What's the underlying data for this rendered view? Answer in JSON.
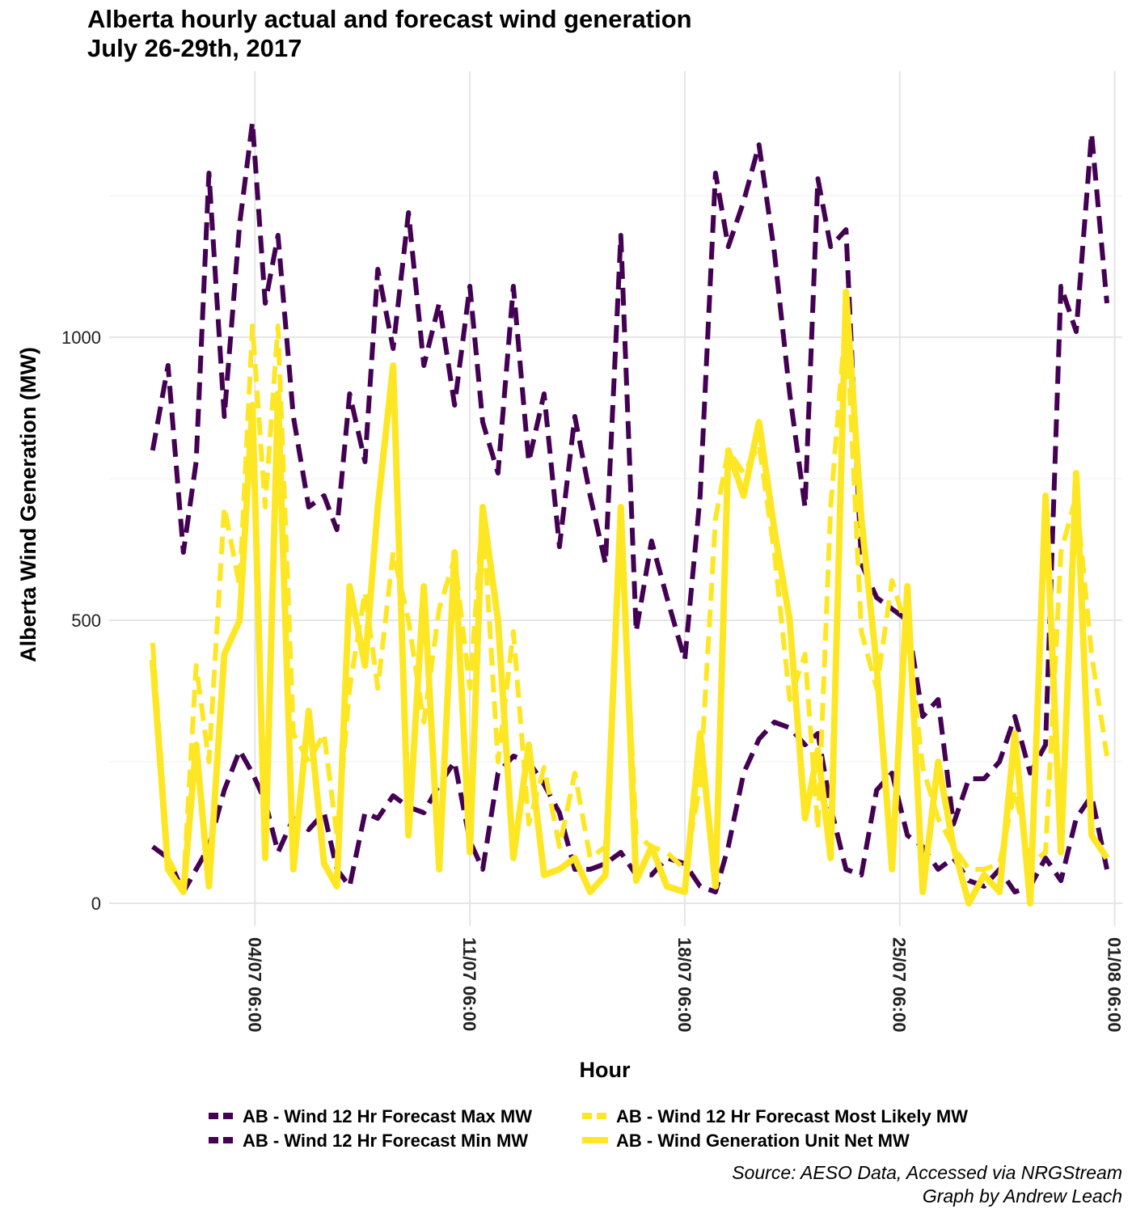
{
  "chart_data": {
    "type": "line",
    "title": [
      "Alberta hourly actual and forecast wind generation",
      "July 26-29th, 2017"
    ],
    "xlabel": "Hour",
    "ylabel": "Alberta Wind Generation (MW)",
    "ylim": [
      -40,
      1470
    ],
    "xlim": [
      "2017-06-29T12:00",
      "2017-08-01T12:00"
    ],
    "y_ticks": [
      0,
      500,
      1000
    ],
    "x_ticks": [
      {
        "label": "04/07 06:00",
        "t": "2017-07-04T06:00"
      },
      {
        "label": "11/07 06:00",
        "t": "2017-07-11T06:00"
      },
      {
        "label": "18/07 06:00",
        "t": "2017-07-18T06:00"
      },
      {
        "label": "25/07 06:00",
        "t": "2017-07-25T06:00"
      },
      {
        "label": "01/08 06:00",
        "t": "2017-08-01T06:00"
      }
    ],
    "grid": true,
    "legend_position": "bottom",
    "colors": {
      "max": "#440154",
      "min": "#440154",
      "likely": "#fde725",
      "actual": "#fde725"
    },
    "series": [
      {
        "name": "AB - Wind 12 Hr Forecast Max MW",
        "style": "dashed",
        "x": [
          "2017-06-30T22:00",
          "2017-07-01T10:00",
          "2017-07-01T22:00",
          "2017-07-02T08:00",
          "2017-07-02T18:00",
          "2017-07-03T06:00",
          "2017-07-03T18:00",
          "2017-07-04T04:00",
          "2017-07-04T14:00",
          "2017-07-05T00:00",
          "2017-07-05T12:00",
          "2017-07-06T00:00",
          "2017-07-06T12:00",
          "2017-07-06T22:00",
          "2017-07-07T08:00",
          "2017-07-07T20:00",
          "2017-07-08T06:00",
          "2017-07-08T18:00",
          "2017-07-09T06:00",
          "2017-07-09T18:00",
          "2017-07-10T06:00",
          "2017-07-10T18:00",
          "2017-07-11T06:00",
          "2017-07-11T16:00",
          "2017-07-12T04:00",
          "2017-07-12T16:00",
          "2017-07-13T04:00",
          "2017-07-13T16:00",
          "2017-07-14T04:00",
          "2017-07-14T16:00",
          "2017-07-15T04:00",
          "2017-07-15T16:00",
          "2017-07-16T04:00",
          "2017-07-16T16:00",
          "2017-07-17T04:00",
          "2017-07-17T16:00",
          "2017-07-18T06:00",
          "2017-07-18T18:00",
          "2017-07-19T06:00",
          "2017-07-19T16:00",
          "2017-07-20T04:00",
          "2017-07-20T16:00",
          "2017-07-21T04:00",
          "2017-07-21T16:00",
          "2017-07-22T04:00",
          "2017-07-22T14:00",
          "2017-07-23T00:00",
          "2017-07-23T12:00",
          "2017-07-24T00:00",
          "2017-07-24T12:00",
          "2017-07-25T00:00",
          "2017-07-25T12:00",
          "2017-07-26T00:00",
          "2017-07-26T12:00",
          "2017-07-27T00:00",
          "2017-07-27T12:00",
          "2017-07-28T00:00",
          "2017-07-28T12:00",
          "2017-07-29T00:00",
          "2017-07-29T12:00",
          "2017-07-30T00:00",
          "2017-07-30T12:00",
          "2017-07-31T00:00",
          "2017-07-31T12:00",
          "2017-08-01T00:00"
        ],
        "y": [
          800,
          950,
          620,
          780,
          1290,
          860,
          1200,
          1380,
          1060,
          1180,
          860,
          700,
          720,
          660,
          900,
          780,
          1120,
          980,
          1220,
          950,
          1060,
          880,
          1090,
          850,
          760,
          1090,
          780,
          900,
          630,
          860,
          720,
          600,
          1180,
          480,
          640,
          540,
          430,
          720,
          1290,
          1160,
          1240,
          1340,
          1150,
          900,
          700,
          1280,
          1160,
          1190,
          600,
          540,
          520,
          500,
          330,
          360,
          140,
          220,
          220,
          250,
          330,
          230,
          280,
          1090,
          1010,
          1360,
          1060
        ]
      },
      {
        "name": "AB - Wind 12 Hr Forecast Min MW",
        "style": "dashed",
        "x": [
          "2017-06-30T22:00",
          "2017-07-01T10:00",
          "2017-07-01T22:00",
          "2017-07-02T08:00",
          "2017-07-02T18:00",
          "2017-07-03T06:00",
          "2017-07-03T18:00",
          "2017-07-04T04:00",
          "2017-07-04T14:00",
          "2017-07-05T00:00",
          "2017-07-05T12:00",
          "2017-07-06T00:00",
          "2017-07-06T12:00",
          "2017-07-06T22:00",
          "2017-07-07T08:00",
          "2017-07-07T20:00",
          "2017-07-08T06:00",
          "2017-07-08T18:00",
          "2017-07-09T06:00",
          "2017-07-09T18:00",
          "2017-07-10T06:00",
          "2017-07-10T18:00",
          "2017-07-11T06:00",
          "2017-07-11T16:00",
          "2017-07-12T04:00",
          "2017-07-12T16:00",
          "2017-07-13T04:00",
          "2017-07-13T16:00",
          "2017-07-14T04:00",
          "2017-07-14T16:00",
          "2017-07-15T04:00",
          "2017-07-15T16:00",
          "2017-07-16T04:00",
          "2017-07-16T16:00",
          "2017-07-17T04:00",
          "2017-07-17T16:00",
          "2017-07-18T06:00",
          "2017-07-18T18:00",
          "2017-07-19T06:00",
          "2017-07-19T16:00",
          "2017-07-20T04:00",
          "2017-07-20T16:00",
          "2017-07-21T04:00",
          "2017-07-21T16:00",
          "2017-07-22T04:00",
          "2017-07-22T14:00",
          "2017-07-23T00:00",
          "2017-07-23T12:00",
          "2017-07-24T00:00",
          "2017-07-24T12:00",
          "2017-07-25T00:00",
          "2017-07-25T12:00",
          "2017-07-26T00:00",
          "2017-07-26T12:00",
          "2017-07-27T00:00",
          "2017-07-27T12:00",
          "2017-07-28T00:00",
          "2017-07-28T12:00",
          "2017-07-29T00:00",
          "2017-07-29T12:00",
          "2017-07-30T00:00",
          "2017-07-30T12:00",
          "2017-07-31T00:00",
          "2017-07-31T12:00",
          "2017-08-01T00:00"
        ],
        "y": [
          100,
          80,
          20,
          60,
          100,
          200,
          270,
          230,
          180,
          90,
          150,
          130,
          160,
          60,
          30,
          160,
          150,
          190,
          170,
          160,
          210,
          250,
          110,
          60,
          230,
          260,
          250,
          210,
          160,
          60,
          60,
          70,
          90,
          50,
          50,
          80,
          70,
          30,
          20,
          100,
          230,
          290,
          320,
          310,
          280,
          300,
          170,
          60,
          50,
          200,
          230,
          120,
          100,
          60,
          80,
          40,
          30,
          60,
          20,
          30,
          80,
          40,
          150,
          190,
          60
        ]
      },
      {
        "name": "AB - Wind 12 Hr Forecast Most Likely MW",
        "style": "dashed",
        "x": [
          "2017-06-30T22:00",
          "2017-07-01T10:00",
          "2017-07-01T22:00",
          "2017-07-02T08:00",
          "2017-07-02T18:00",
          "2017-07-03T06:00",
          "2017-07-03T18:00",
          "2017-07-04T04:00",
          "2017-07-04T14:00",
          "2017-07-05T00:00",
          "2017-07-05T12:00",
          "2017-07-06T00:00",
          "2017-07-06T12:00",
          "2017-07-06T22:00",
          "2017-07-07T08:00",
          "2017-07-07T20:00",
          "2017-07-08T06:00",
          "2017-07-08T18:00",
          "2017-07-09T06:00",
          "2017-07-09T18:00",
          "2017-07-10T06:00",
          "2017-07-10T18:00",
          "2017-07-11T06:00",
          "2017-07-11T16:00",
          "2017-07-12T04:00",
          "2017-07-12T16:00",
          "2017-07-13T04:00",
          "2017-07-13T16:00",
          "2017-07-14T04:00",
          "2017-07-14T16:00",
          "2017-07-15T04:00",
          "2017-07-15T16:00",
          "2017-07-16T04:00",
          "2017-07-16T16:00",
          "2017-07-17T04:00",
          "2017-07-17T16:00",
          "2017-07-18T06:00",
          "2017-07-18T18:00",
          "2017-07-19T06:00",
          "2017-07-19T16:00",
          "2017-07-20T04:00",
          "2017-07-20T16:00",
          "2017-07-21T04:00",
          "2017-07-21T16:00",
          "2017-07-22T04:00",
          "2017-07-22T14:00",
          "2017-07-23T00:00",
          "2017-07-23T12:00",
          "2017-07-24T00:00",
          "2017-07-24T12:00",
          "2017-07-25T00:00",
          "2017-07-25T12:00",
          "2017-07-26T00:00",
          "2017-07-26T12:00",
          "2017-07-27T00:00",
          "2017-07-27T12:00",
          "2017-07-28T00:00",
          "2017-07-28T12:00",
          "2017-07-29T00:00",
          "2017-07-29T12:00",
          "2017-07-30T00:00",
          "2017-07-30T12:00",
          "2017-07-31T00:00",
          "2017-07-31T12:00",
          "2017-08-01T00:00"
        ],
        "y": [
          460,
          80,
          30,
          420,
          250,
          700,
          560,
          1020,
          700,
          1020,
          300,
          250,
          300,
          120,
          380,
          550,
          380,
          620,
          500,
          320,
          520,
          610,
          380,
          690,
          250,
          480,
          140,
          240,
          100,
          230,
          80,
          100,
          680,
          120,
          100,
          90,
          60,
          210,
          680,
          800,
          760,
          810,
          620,
          360,
          440,
          130,
          700,
          1040,
          480,
          380,
          570,
          480,
          240,
          150,
          100,
          60,
          60,
          70,
          200,
          70,
          90,
          620,
          720,
          440,
          260
        ]
      },
      {
        "name": "AB - Wind Generation Unit Net MW",
        "style": "solid",
        "x": [
          "2017-06-30T22:00",
          "2017-07-01T10:00",
          "2017-07-01T22:00",
          "2017-07-02T08:00",
          "2017-07-02T18:00",
          "2017-07-03T06:00",
          "2017-07-03T18:00",
          "2017-07-04T04:00",
          "2017-07-04T14:00",
          "2017-07-05T00:00",
          "2017-07-05T12:00",
          "2017-07-06T00:00",
          "2017-07-06T12:00",
          "2017-07-06T22:00",
          "2017-07-07T08:00",
          "2017-07-07T20:00",
          "2017-07-08T06:00",
          "2017-07-08T18:00",
          "2017-07-09T06:00",
          "2017-07-09T18:00",
          "2017-07-10T06:00",
          "2017-07-10T18:00",
          "2017-07-11T06:00",
          "2017-07-11T16:00",
          "2017-07-12T04:00",
          "2017-07-12T16:00",
          "2017-07-13T04:00",
          "2017-07-13T16:00",
          "2017-07-14T04:00",
          "2017-07-14T16:00",
          "2017-07-15T04:00",
          "2017-07-15T16:00",
          "2017-07-16T04:00",
          "2017-07-16T16:00",
          "2017-07-17T04:00",
          "2017-07-17T16:00",
          "2017-07-18T06:00",
          "2017-07-18T18:00",
          "2017-07-19T06:00",
          "2017-07-19T16:00",
          "2017-07-20T04:00",
          "2017-07-20T16:00",
          "2017-07-21T04:00",
          "2017-07-21T16:00",
          "2017-07-22T04:00",
          "2017-07-22T14:00",
          "2017-07-23T00:00",
          "2017-07-23T12:00",
          "2017-07-24T00:00",
          "2017-07-24T12:00",
          "2017-07-25T00:00",
          "2017-07-25T12:00",
          "2017-07-26T00:00",
          "2017-07-26T12:00",
          "2017-07-27T00:00",
          "2017-07-27T12:00",
          "2017-07-28T00:00",
          "2017-07-28T12:00",
          "2017-07-29T00:00",
          "2017-07-29T12:00",
          "2017-07-30T00:00",
          "2017-07-30T12:00",
          "2017-07-31T00:00",
          "2017-07-31T12:00",
          "2017-08-01T00:00"
        ],
        "y": [
          430,
          60,
          20,
          280,
          30,
          440,
          500,
          880,
          80,
          900,
          60,
          340,
          70,
          30,
          560,
          420,
          700,
          950,
          120,
          560,
          60,
          620,
          90,
          700,
          500,
          80,
          280,
          50,
          60,
          80,
          20,
          50,
          700,
          40,
          100,
          30,
          20,
          300,
          30,
          800,
          720,
          850,
          660,
          500,
          150,
          270,
          80,
          1080,
          680,
          420,
          60,
          560,
          20,
          250,
          100,
          0,
          50,
          20,
          300,
          0,
          720,
          90,
          760,
          120,
          80
        ]
      }
    ]
  },
  "legend": {
    "items": [
      {
        "label": "AB - Wind 12 Hr Forecast Max MW",
        "color": "#440154"
      },
      {
        "label": "AB - Wind 12 Hr Forecast Min MW",
        "color": "#440154"
      },
      {
        "label": "AB - Wind 12 Hr Forecast Most Likely MW",
        "color": "#fde725"
      },
      {
        "label": "AB - Wind Generation Unit Net MW",
        "color": "#fde725"
      }
    ]
  },
  "caption": [
    "Source: AESO Data, Accessed via NRGStream",
    "Graph by Andrew Leach"
  ]
}
